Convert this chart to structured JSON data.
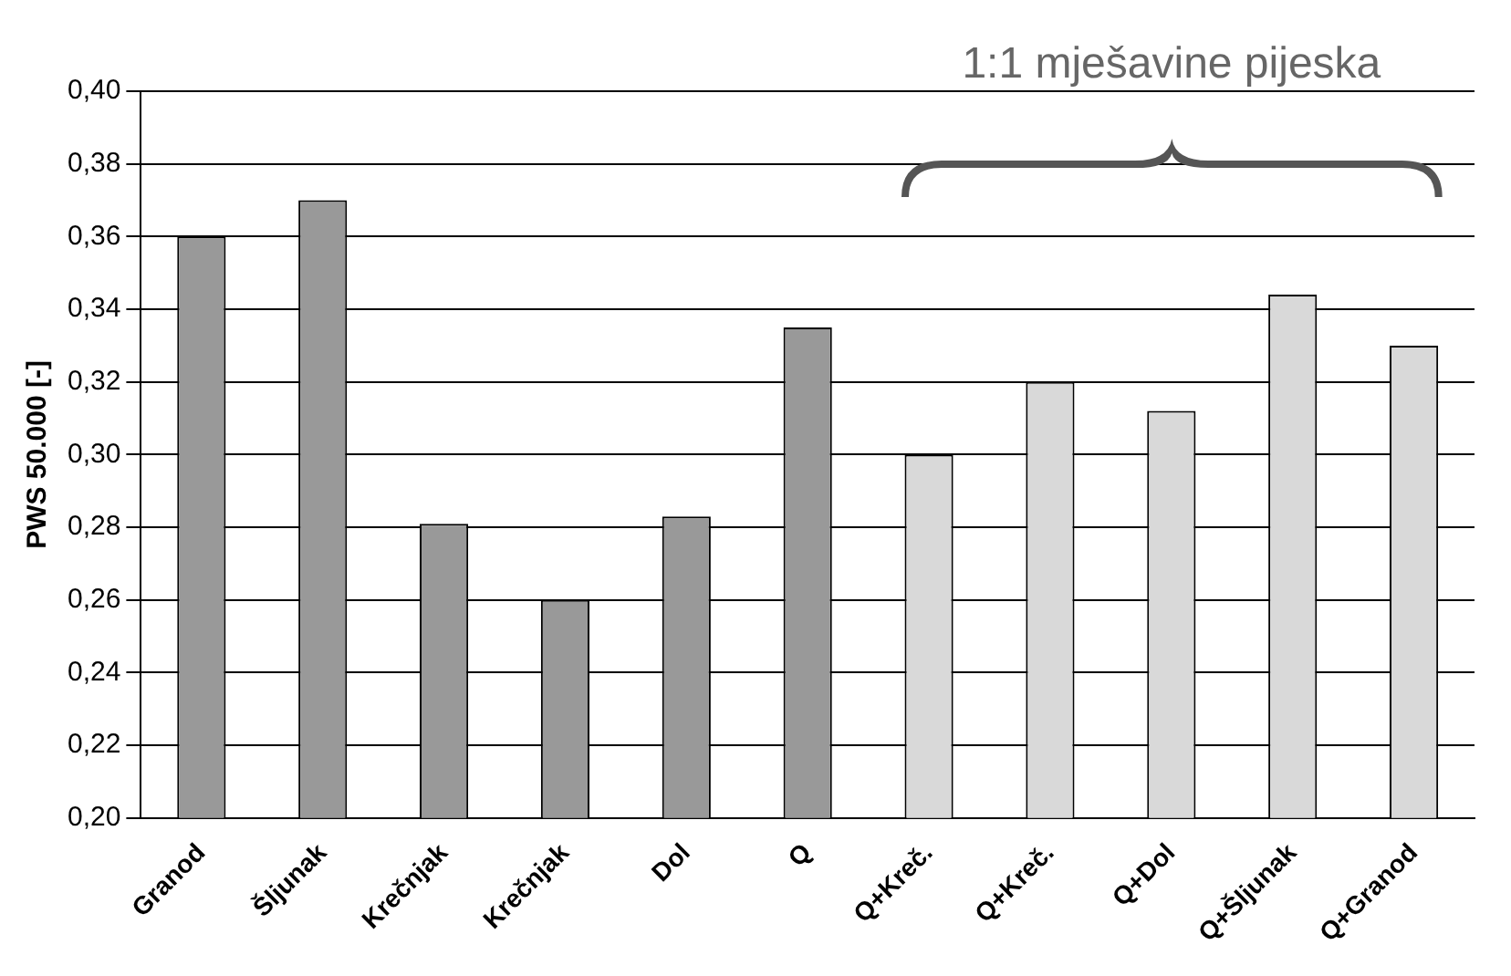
{
  "chart_data": {
    "type": "bar",
    "ylabel": "PWS 50.000 [-]",
    "categories": [
      "Granod",
      "Šljunak",
      "Krečnjak",
      "Krečnjak",
      "Dol",
      "Q",
      "Q+Kreč.",
      "Q+Kreč.",
      "Q+Dol",
      "Q+Šljunak",
      "Q+Granod"
    ],
    "values": [
      0.36,
      0.37,
      0.281,
      0.26,
      0.283,
      0.335,
      0.3,
      0.32,
      0.312,
      0.344,
      0.33
    ],
    "colors": [
      "#999999",
      "#999999",
      "#999999",
      "#999999",
      "#999999",
      "#999999",
      "#d9d9d9",
      "#d9d9d9",
      "#d9d9d9",
      "#d9d9d9",
      "#d9d9d9"
    ],
    "ylim": [
      0.2,
      0.4
    ],
    "yticks": [
      {
        "value": 0.2,
        "label": "0,20"
      },
      {
        "value": 0.22,
        "label": "0,22"
      },
      {
        "value": 0.24,
        "label": "0,24"
      },
      {
        "value": 0.26,
        "label": "0,26"
      },
      {
        "value": 0.28,
        "label": "0,28"
      },
      {
        "value": 0.3,
        "label": "0,30"
      },
      {
        "value": 0.32,
        "label": "0,32"
      },
      {
        "value": 0.34,
        "label": "0,34"
      },
      {
        "value": 0.36,
        "label": "0,36"
      },
      {
        "value": 0.38,
        "label": "0,38"
      },
      {
        "value": 0.4,
        "label": "0,40"
      }
    ],
    "grid": "y",
    "annotations": [
      "1:1 mješavine pijeska"
    ]
  }
}
